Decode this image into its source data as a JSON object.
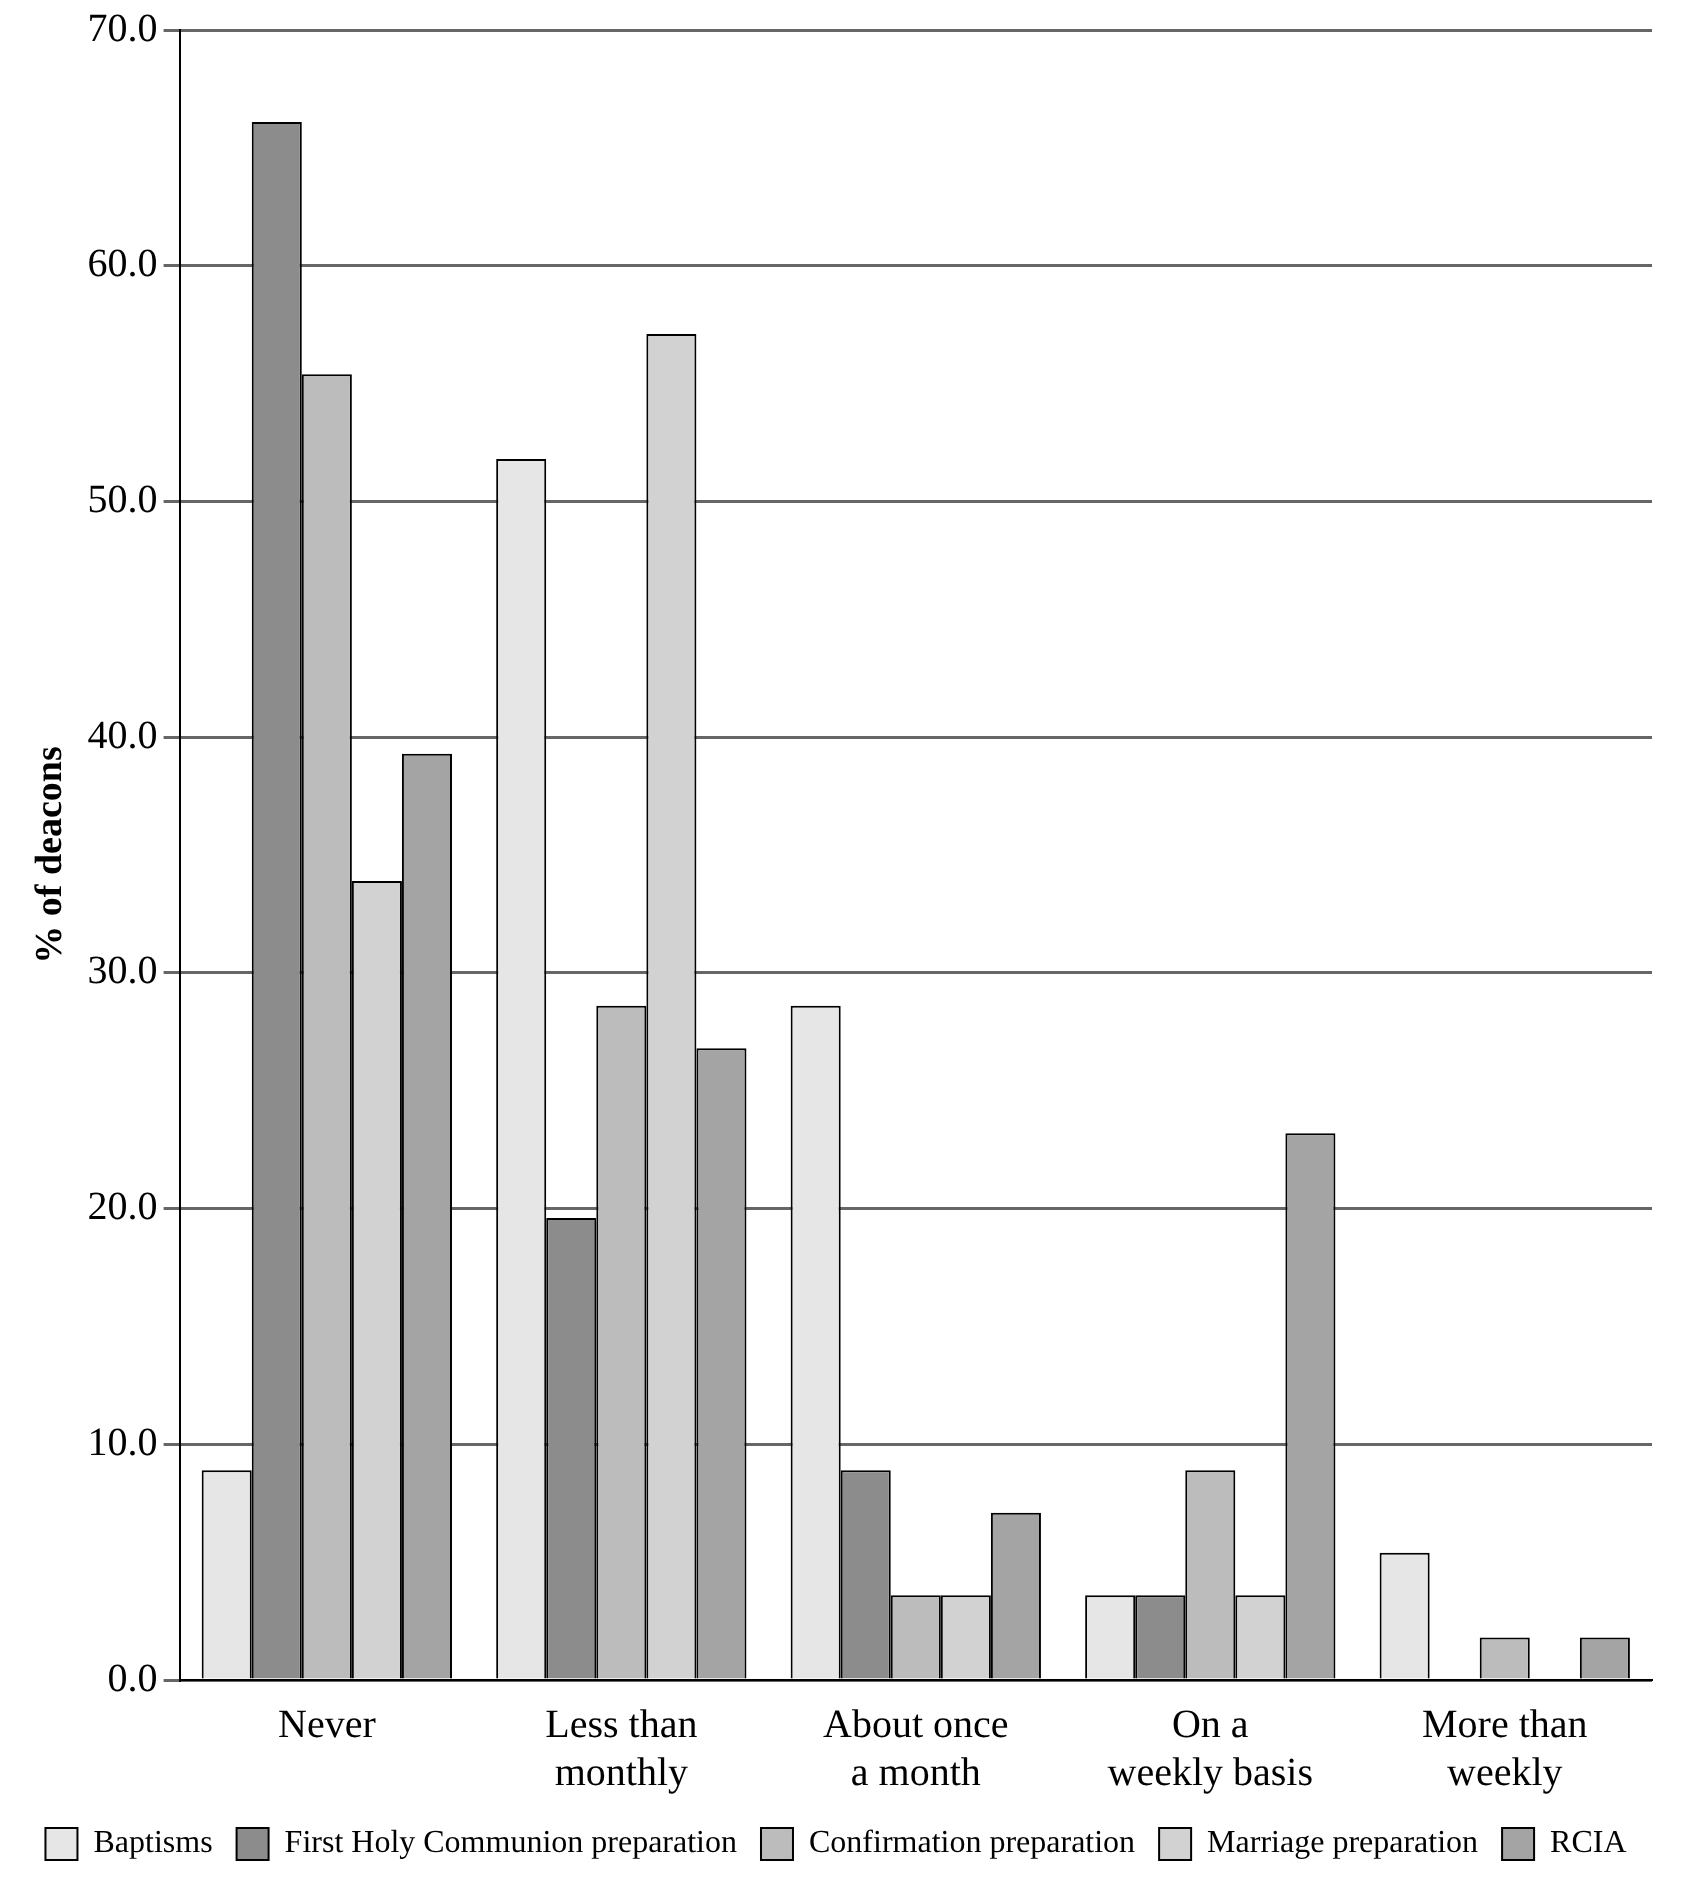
{
  "chart_data": {
    "type": "bar",
    "ylabel": "% of deacons",
    "categories": [
      "Never",
      "Less than monthly",
      "About once a month",
      "On a weekly basis",
      "More than weekly"
    ],
    "series": [
      {
        "name": "Baptisms",
        "color": "#e6e6e6",
        "values": [
          8.9,
          51.8,
          28.6,
          3.6,
          5.4
        ]
      },
      {
        "name": "First Holy Communion preparation",
        "color": "#8c8c8c",
        "values": [
          66.1,
          19.6,
          8.9,
          3.6,
          0
        ]
      },
      {
        "name": "Confirmation preparation",
        "color": "#bcbcbc",
        "values": [
          55.4,
          28.6,
          3.6,
          8.9,
          1.8
        ]
      },
      {
        "name": "Marriage preparation",
        "color": "#d2d2d2",
        "values": [
          33.9,
          57.1,
          3.6,
          3.6,
          0
        ]
      },
      {
        "name": "RCIA",
        "color": "#a4a4a4",
        "values": [
          39.3,
          26.8,
          7.1,
          23.2,
          1.8
        ]
      }
    ],
    "ylim": [
      0,
      70
    ],
    "yticks": [
      {
        "value": 0,
        "label": "0.0"
      },
      {
        "value": 10,
        "label": "10.0"
      },
      {
        "value": 20,
        "label": "20.0"
      },
      {
        "value": 30,
        "label": "30.0"
      },
      {
        "value": 40,
        "label": "40.0"
      },
      {
        "value": 50,
        "label": "50.0"
      },
      {
        "value": 60,
        "label": "60.0"
      },
      {
        "value": 70,
        "label": "70.0"
      }
    ],
    "grid": "y",
    "legend": "bottom"
  }
}
